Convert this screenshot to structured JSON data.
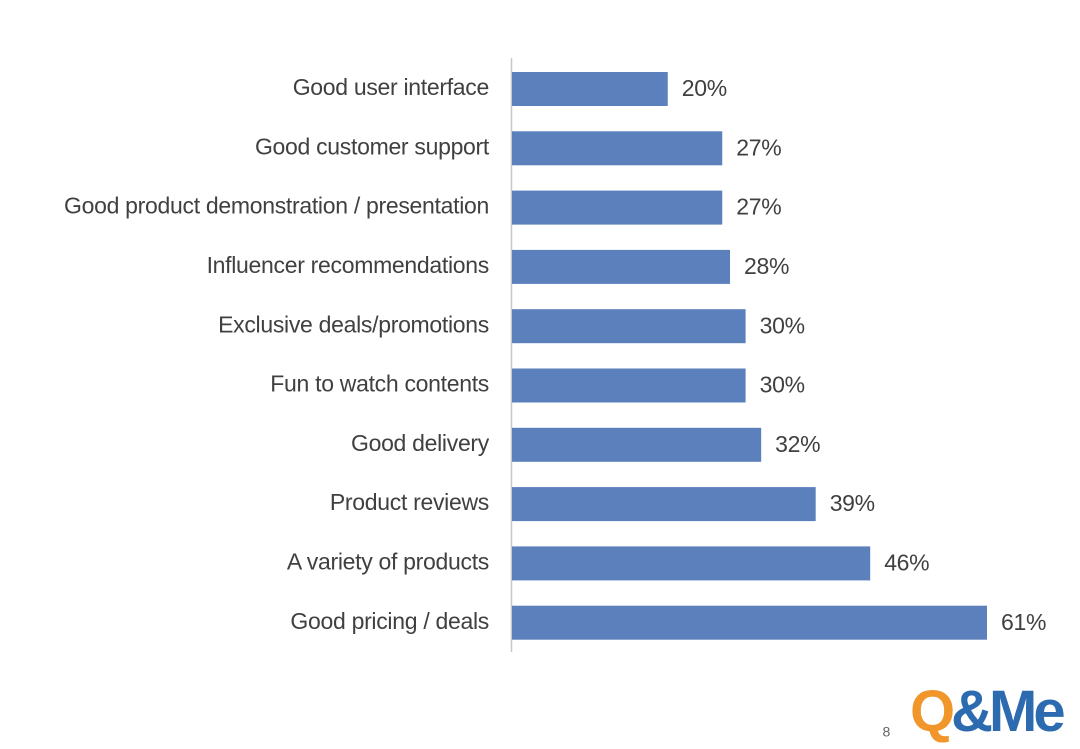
{
  "chart_data": {
    "type": "bar",
    "orientation": "horizontal",
    "categories": [
      "Good user interface",
      "Good customer support",
      "Good product demonstration / presentation",
      "Influencer recommendations",
      "Exclusive deals/promotions",
      "Fun to watch contents",
      "Good delivery",
      "Product reviews",
      "A variety of products",
      "Good pricing / deals"
    ],
    "values": [
      20,
      27,
      27,
      28,
      30,
      30,
      32,
      39,
      46,
      61
    ],
    "value_labels": [
      "20%",
      "27%",
      "27%",
      "28%",
      "30%",
      "30%",
      "32%",
      "39%",
      "46%",
      "61%"
    ],
    "color": "#5b80bc"
  },
  "page_number": "8",
  "logo": "Q&Me"
}
